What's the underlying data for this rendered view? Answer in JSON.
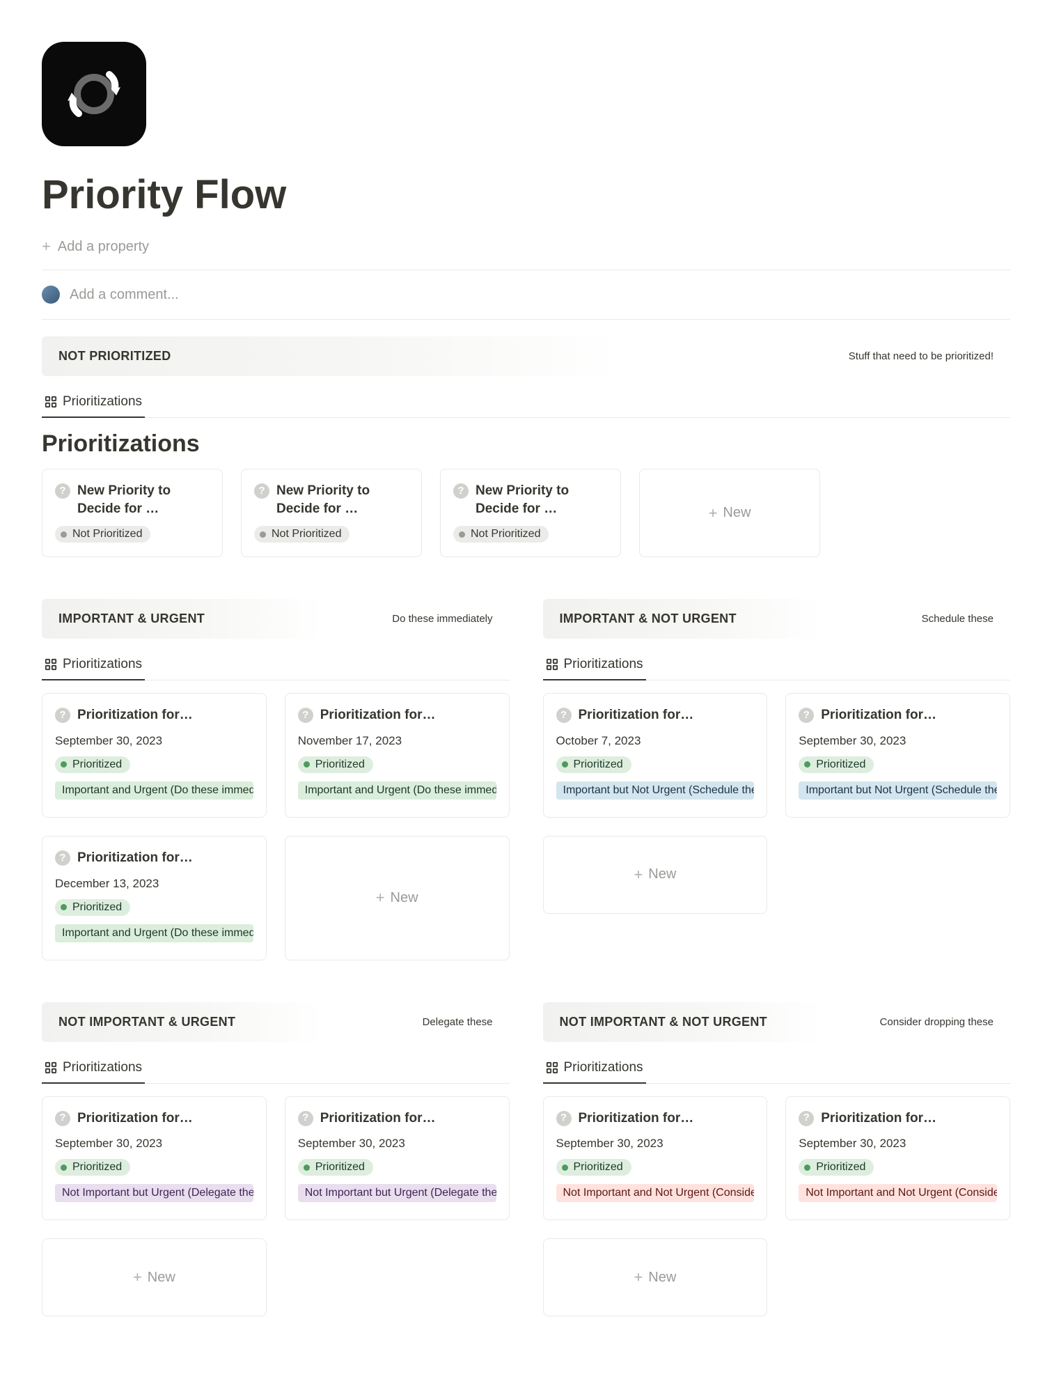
{
  "page": {
    "title": "Priority Flow",
    "add_property_label": "Add a property",
    "comment_placeholder": "Add a comment..."
  },
  "not_prioritized": {
    "header": "NOT PRIORITIZED",
    "hint": "Stuff that need to be prioritized!",
    "tab_label": "Prioritizations",
    "heading": "Prioritizations",
    "status_label": "Not Prioritized",
    "status_dot_color": "#9b9a97",
    "status_bg": "#ebebea",
    "cards": [
      {
        "title": "New Priority to Decide for …"
      },
      {
        "title": "New Priority to Decide for …"
      },
      {
        "title": "New Priority to Decide for …"
      }
    ],
    "new_label": "New"
  },
  "quadrants": {
    "important_urgent": {
      "header": "IMPORTANT & URGENT",
      "hint": "Do these immediately",
      "tab_label": "Prioritizations",
      "tag_bg": "#dbeddb",
      "tag_text": "Important and Urgent (Do these immediately",
      "cards": [
        {
          "title": "Prioritization for…",
          "date": "September 30, 2023"
        },
        {
          "title": "Prioritization for…",
          "date": "November 17, 2023"
        },
        {
          "title": "Prioritization for…",
          "date": "December 13, 2023"
        }
      ],
      "new_label": "New"
    },
    "important_not_urgent": {
      "header": "IMPORTANT & NOT URGENT",
      "hint": "Schedule these",
      "tab_label": "Prioritizations",
      "tag_bg": "#d3e5ef",
      "tag_text": "Important but Not Urgent (Schedule these)",
      "cards": [
        {
          "title": "Prioritization for…",
          "date": "October 7, 2023"
        },
        {
          "title": "Prioritization for…",
          "date": "September 30, 2023"
        }
      ],
      "new_label": "New"
    },
    "not_important_urgent": {
      "header": "NOT IMPORTANT & URGENT",
      "hint": "Delegate these",
      "tab_label": "Prioritizations",
      "tag_bg": "#e8deee",
      "tag_text": "Not Important but Urgent (Delegate these)",
      "cards": [
        {
          "title": "Prioritization for…",
          "date": "September 30, 2023"
        },
        {
          "title": "Prioritization for…",
          "date": "September 30, 2023"
        }
      ],
      "new_label": "New"
    },
    "not_important_not_urgent": {
      "header": "NOT IMPORTANT & NOT URGENT",
      "hint": "Consider dropping these",
      "tab_label": "Prioritizations",
      "tag_bg": "#ffe2dd",
      "tag_text": "Not Important and Not Urgent (Consider dro",
      "cards": [
        {
          "title": "Prioritization for…",
          "date": "September 30, 2023"
        },
        {
          "title": "Prioritization for…",
          "date": "September 30, 2023"
        }
      ],
      "new_label": "New"
    }
  },
  "prioritized_status": {
    "label": "Prioritized",
    "dot_color": "#4d9b5f",
    "bg": "#deeede"
  }
}
